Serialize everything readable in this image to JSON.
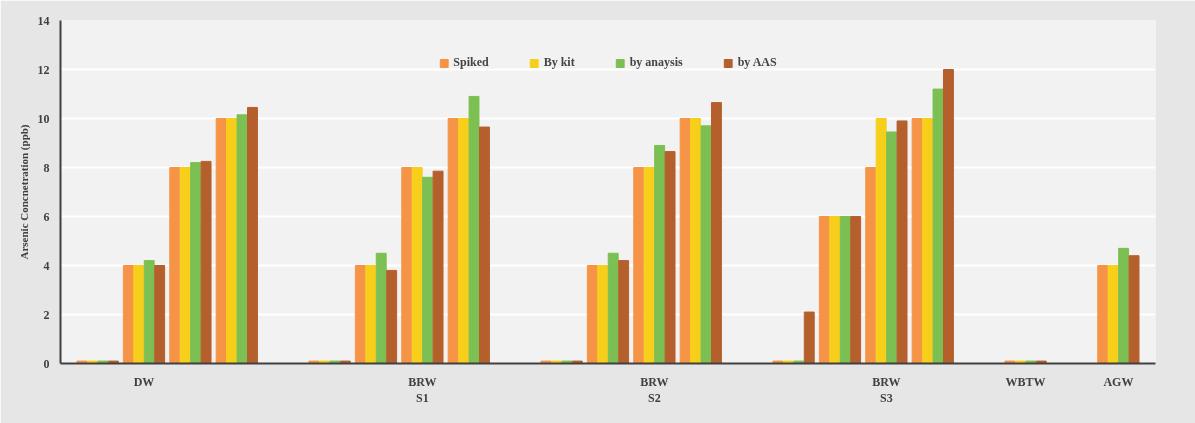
{
  "chart_data": {
    "type": "bar",
    "ylabel": "Arsenic Concnetration (ppb)",
    "categories": [
      null,
      "DW",
      null,
      null,
      null,
      null,
      null,
      "BRW\nS1",
      null,
      null,
      null,
      null,
      "BRW\nS2",
      null,
      null,
      null,
      null,
      "BRW\nS3",
      null,
      null,
      "WBTW",
      null,
      "AGW"
    ],
    "series": [
      {
        "name": "Spiked",
        "color": "#f59446",
        "values": [
          0.1,
          4,
          8,
          10,
          null,
          0.1,
          4,
          8,
          10,
          null,
          0.1,
          4,
          8,
          10,
          null,
          0.1,
          6,
          8,
          10,
          null,
          0.1,
          null,
          4
        ]
      },
      {
        "name": "By kit",
        "color": "#f7cf1a",
        "values": [
          0.1,
          4,
          8,
          10,
          null,
          0.1,
          4,
          8,
          10,
          null,
          0.1,
          4,
          8,
          10,
          null,
          0.1,
          6,
          10,
          10,
          null,
          0.1,
          null,
          4
        ]
      },
      {
        "name": "by anaysis",
        "color": "#7cbf52",
        "values": [
          0.1,
          4.2,
          8.2,
          10.15,
          null,
          0.1,
          4.5,
          7.6,
          10.9,
          null,
          0.1,
          4.5,
          8.9,
          9.7,
          null,
          0.1,
          6,
          9.45,
          11.2,
          null,
          0.1,
          null,
          4.7
        ]
      },
      {
        "name": "by AAS",
        "color": "#b5602c",
        "values": [
          0.1,
          4,
          8.25,
          10.45,
          null,
          0.1,
          3.8,
          7.85,
          9.65,
          null,
          0.1,
          4.2,
          8.65,
          10.65,
          null,
          2.1,
          6,
          9.9,
          12,
          null,
          0.1,
          null,
          4.4
        ]
      }
    ],
    "ylim": [
      0,
      14
    ],
    "yticks": [
      0,
      2,
      4,
      6,
      8,
      10,
      12,
      14
    ],
    "grid": "y",
    "legend": "top"
  }
}
